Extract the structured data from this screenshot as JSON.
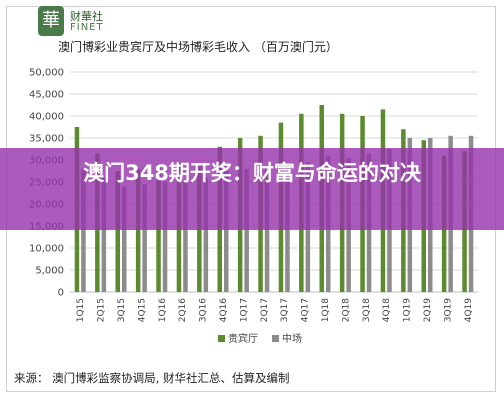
{
  "logo": {
    "glyph": "華",
    "name_cn": "财華社",
    "name_en": "FINET"
  },
  "overlay_title": "澳门348期开奖：财富与命运的对决",
  "source_note": "来源： 澳门博彩监察协调局, 财华社汇总、估算及编制",
  "colors": {
    "vip": "#5b8a2f",
    "mass": "#8c8c8c",
    "banner": "#9632aa"
  },
  "chart_data": {
    "type": "bar",
    "title": "澳门博彩业贵宾厅及中场博彩毛收入 （百万澳门元）",
    "categories": [
      "1Q15",
      "2Q15",
      "3Q15",
      "4Q15",
      "1Q16",
      "2Q16",
      "3Q16",
      "4Q16",
      "1Q17",
      "2Q17",
      "3Q17",
      "4Q17",
      "1Q18",
      "2Q18",
      "3Q18",
      "4Q18",
      "1Q19",
      "2Q19",
      "3Q19",
      "4Q19"
    ],
    "series": [
      {
        "name": "贵宾厅",
        "values": [
          37500,
          31500,
          27500,
          28000,
          29000,
          29500,
          28500,
          33000,
          35000,
          35500,
          38500,
          40500,
          42500,
          40500,
          40000,
          41500,
          37000,
          34500,
          31000,
          32000
        ]
      },
      {
        "name": "中场",
        "values": [
          28000,
          26000,
          24000,
          24500,
          25000,
          25500,
          26000,
          27500,
          28000,
          28500,
          29000,
          29500,
          31000,
          30500,
          31500,
          32500,
          35000,
          35000,
          35500,
          35500
        ]
      }
    ],
    "ylim": [
      0,
      50000
    ],
    "yticks": [
      "0",
      "5,000",
      "10,000",
      "15,000",
      "20,000",
      "25,000",
      "30,000",
      "35,000",
      "40,000",
      "45,000",
      "50,000"
    ],
    "grid": true,
    "legend_position": "bottom"
  }
}
